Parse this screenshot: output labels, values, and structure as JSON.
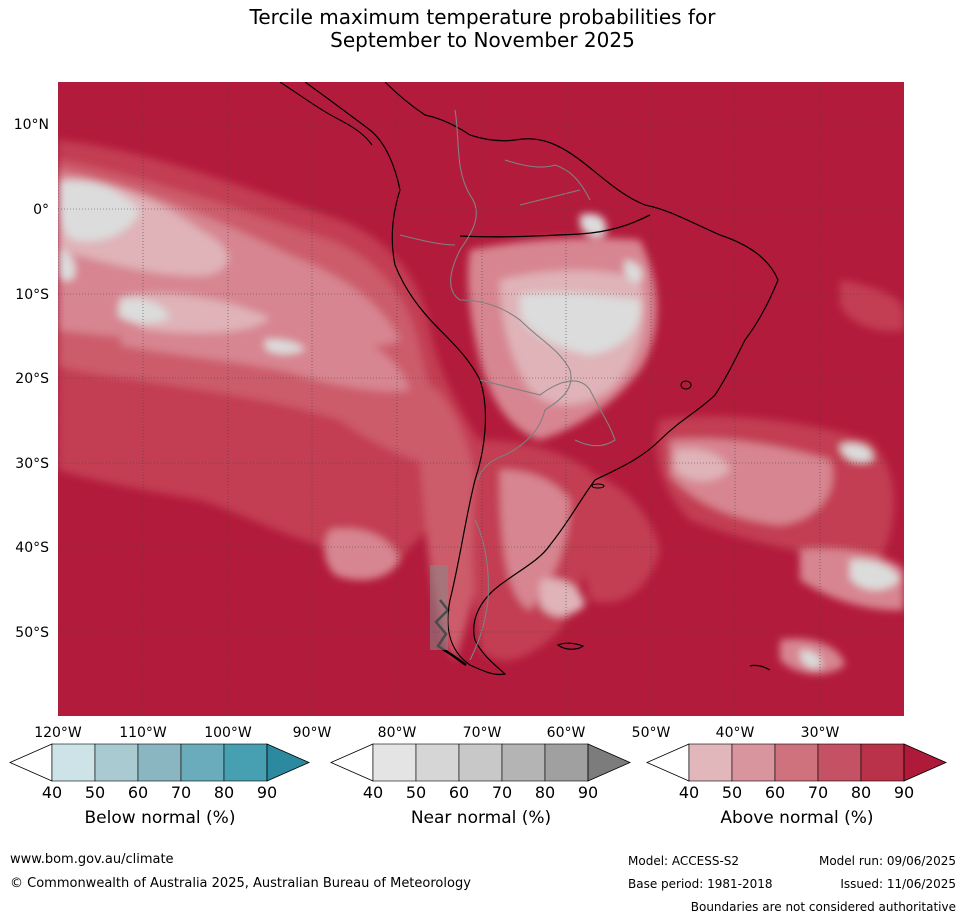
{
  "title": {
    "line1": "Tercile maximum temperature probabilities for",
    "line2": "September to November 2025"
  },
  "map": {
    "lat_labels": [
      "10°N",
      "0°",
      "10°S",
      "20°S",
      "30°S",
      "40°S",
      "50°S"
    ],
    "lon_labels": [
      "120°W",
      "110°W",
      "100°W",
      "90°W",
      "80°W",
      "70°W",
      "60°W",
      "50°W",
      "40°W",
      "30°W"
    ],
    "colors": {
      "ocean_high": "#b31b3c",
      "above_80": "#c33c53",
      "above_70": "#cc5c6a",
      "above_60": "#d78591",
      "above_50": "#dfb3b8",
      "near_50": "#dcdcdc",
      "near_60": "#c9c9c9",
      "coast": "#000000",
      "border": "#808080",
      "grid": "#444444"
    }
  },
  "colorbars": [
    {
      "label": "Below normal (%)",
      "ticks": [
        "40",
        "50",
        "60",
        "70",
        "80",
        "90"
      ],
      "colors": [
        "#ffffff",
        "#cde3e8",
        "#a9cad1",
        "#8ab6c2",
        "#6aacbb",
        "#47a0b2",
        "#2b8aa0"
      ]
    },
    {
      "label": "Near normal (%)",
      "ticks": [
        "40",
        "50",
        "60",
        "70",
        "80",
        "90"
      ],
      "colors": [
        "#ffffff",
        "#e4e4e4",
        "#d6d6d6",
        "#c8c8c8",
        "#b4b4b4",
        "#a0a0a0",
        "#7c7c7c"
      ]
    },
    {
      "label": "Above normal (%)",
      "ticks": [
        "40",
        "50",
        "60",
        "70",
        "80",
        "90"
      ],
      "colors": [
        "#ffffff",
        "#e1b7bc",
        "#d9959d",
        "#cf727e",
        "#c45264",
        "#ba3249",
        "#b01a3a"
      ]
    }
  ],
  "footer": {
    "website": "www.bom.gov.au/climate",
    "copyright": "© Commonwealth of Australia 2025, Australian Bureau of Meteorology",
    "model": "Model: ACCESS-S2",
    "model_run": "Model run: 09/06/2025",
    "base_period": "Base period: 1981-2018",
    "issued": "Issued: 11/06/2025",
    "disclaimer": "Boundaries are not considered authoritative"
  }
}
